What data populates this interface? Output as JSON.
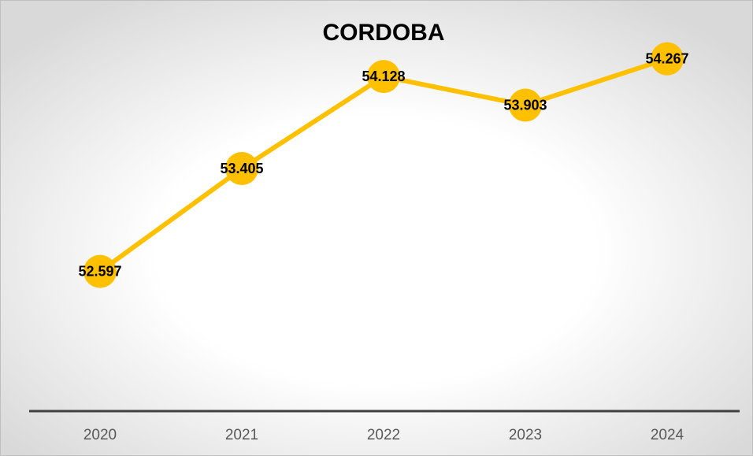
{
  "chart_data": {
    "type": "line",
    "title": "CORDOBA",
    "categories": [
      "2020",
      "2021",
      "2022",
      "2023",
      "2024"
    ],
    "values": [
      52.597,
      53.405,
      54.128,
      53.903,
      54.267
    ],
    "color": "#ffc000",
    "ylim": [
      51.5,
      54.5
    ]
  }
}
